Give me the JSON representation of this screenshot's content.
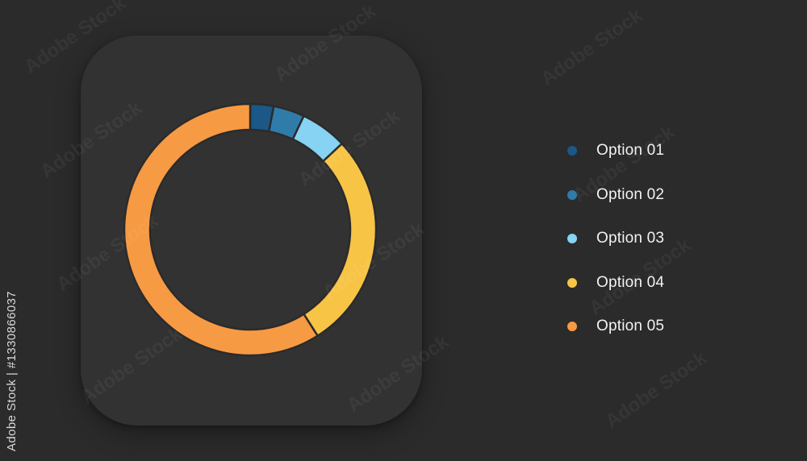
{
  "side_text": "Adobe Stock | #1330866037",
  "watermark": "Adobe Stock",
  "chart_data": {
    "type": "pie",
    "title": "",
    "donut": true,
    "categories": [
      "Option 01",
      "Option 02",
      "Option 03",
      "Option 04",
      "Option 05"
    ],
    "values": [
      3,
      4,
      6,
      28,
      59
    ],
    "colors": [
      "#1b5887",
      "#2f7cab",
      "#86d3f3",
      "#f8c446",
      "#f79a44"
    ],
    "legend_position": "right"
  }
}
